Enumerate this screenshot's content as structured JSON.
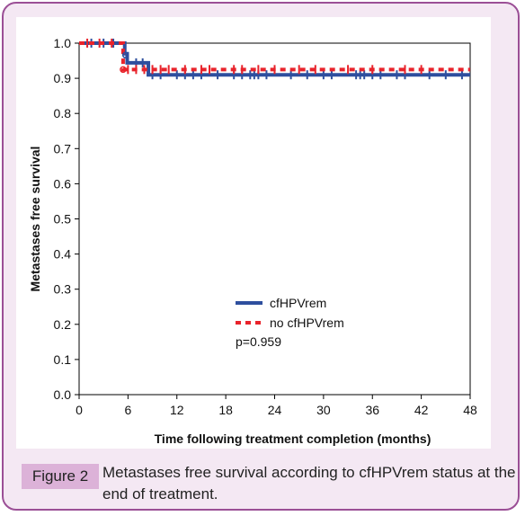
{
  "chart_data": {
    "type": "line",
    "xlabel": "Time following treatment completion (months)",
    "ylabel": "Metastases free survival",
    "xlim": [
      0,
      48
    ],
    "ylim": [
      0.0,
      1.0
    ],
    "xticks": [
      "0",
      "6",
      "12",
      "18",
      "24",
      "30",
      "36",
      "42",
      "48"
    ],
    "yticks": [
      "0.0",
      "0.1",
      "0.2",
      "0.3",
      "0.4",
      "0.5",
      "0.6",
      "0.7",
      "0.8",
      "0.9",
      "1.0"
    ],
    "grid": false,
    "legend_position": "center-bottom",
    "annotation": "p=0.959",
    "series": [
      {
        "name": "cfHPVrem",
        "color": "#2e4f9e",
        "style": "solid",
        "steps": [
          [
            0,
            1.0
          ],
          [
            5.6,
            1.0
          ],
          [
            5.6,
            0.97
          ],
          [
            5.9,
            0.97
          ],
          [
            5.9,
            0.944
          ],
          [
            8.5,
            0.944
          ],
          [
            8.5,
            0.91
          ],
          [
            48,
            0.91
          ]
        ],
        "censored": [
          1.5,
          3,
          4.2,
          7,
          7.8,
          9,
          10,
          12,
          13,
          14,
          15,
          17,
          19,
          20,
          21,
          21.5,
          22,
          23,
          26,
          28,
          30,
          31,
          34,
          34.5,
          35,
          36,
          37,
          39,
          40,
          43,
          45,
          47
        ]
      },
      {
        "name": "no cfHPVrem",
        "color": "#e8232b",
        "style": "dashed",
        "steps": [
          [
            0,
            1.0
          ],
          [
            5.4,
            1.0
          ],
          [
            5.4,
            0.925
          ],
          [
            48,
            0.925
          ]
        ],
        "censored": [
          1,
          2.5,
          4,
          6,
          7,
          8,
          9,
          10,
          11,
          13,
          15,
          16,
          19,
          20,
          22,
          24,
          27,
          29,
          33,
          36,
          40,
          42
        ]
      }
    ]
  },
  "caption": {
    "label": "Figure 2",
    "text": "Metastases free survival according to cfHPVrem status at the end of treatment."
  }
}
